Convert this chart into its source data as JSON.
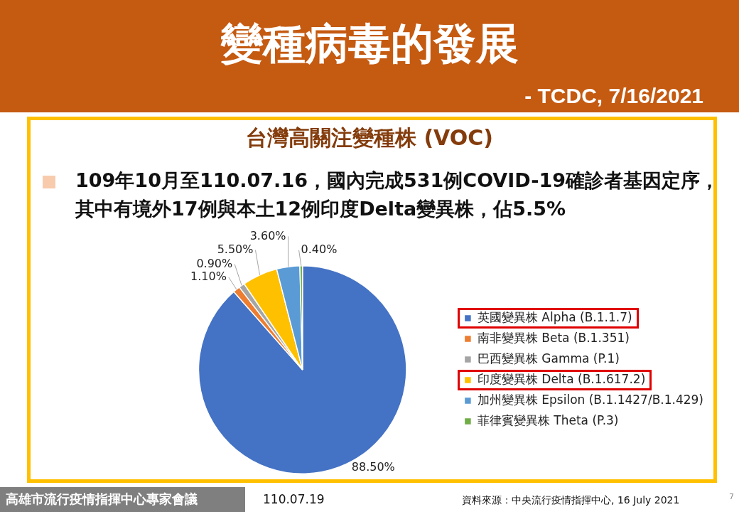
{
  "chart_data": {
    "type": "pie",
    "title": "變種病毒的發展",
    "subtitle": "- TCDC, 7/16/2021",
    "categories": [
      "英國變異株 Alpha (B.1.1.7)",
      "南非變異株 Beta (B.1.351)",
      "巴西變異株 Gamma (P.1)",
      "印度變異株 Delta (B.1.617.2)",
      "加州變異株 Epsilon (B.1.1427/B.1.429)",
      "菲律賓變異株 Theta (P.3)"
    ],
    "values": [
      88.5,
      1.1,
      0.9,
      5.5,
      3.6,
      0.4
    ],
    "colors": [
      "#4472c4",
      "#ed7d31",
      "#a5a5a5",
      "#ffc000",
      "#5b9bd5",
      "#70ad47"
    ],
    "value_labels": [
      "88.50%",
      "1.10%",
      "0.90%",
      "5.50%",
      "3.60%",
      "0.40%"
    ],
    "legend": "right",
    "annotations": [
      "台灣高關注變種株 (VOC)",
      "109年10月至110.07.16，國內完成531例COVID-19確診者基因定序，其中有境外17例與本土12例印度Delta變異株，佔5.5%",
      "高雄市流行疫情指揮中心專家會議",
      "110.07.19",
      "資料來源：中央流行疫情指揮中心, 16 July 2021",
      "7"
    ]
  }
}
